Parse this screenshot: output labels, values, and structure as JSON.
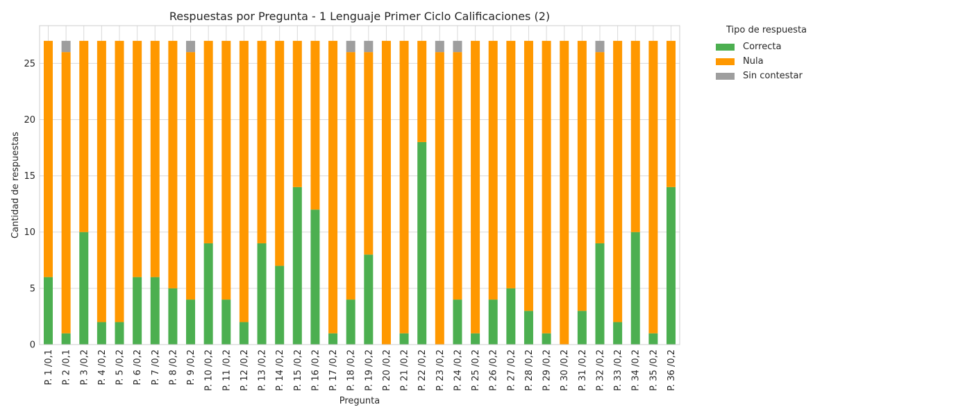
{
  "chart_data": {
    "type": "bar",
    "stacked": true,
    "title": "Respuestas por Pregunta - 1 Lenguaje  Primer Ciclo Calificaciones (2)",
    "xlabel": "Pregunta",
    "ylabel": "Cantidad de respuestas",
    "ylim": [
      0,
      28.35
    ],
    "yticks": [
      0,
      5,
      10,
      15,
      20,
      25
    ],
    "grid": true,
    "legend_title": "Tipo de respuesta",
    "legend_position": "outside-right",
    "categories": [
      "P. 1 /0,1",
      "P. 2 /0,1",
      "P. 3 /0,2",
      "P. 4 /0,2",
      "P. 5 /0,2",
      "P. 6 /0,2",
      "P. 7 /0,2",
      "P. 8 /0,2",
      "P. 9 /0,2",
      "P. 10 /0,2",
      "P. 11 /0,2",
      "P. 12 /0,2",
      "P. 13 /0,2",
      "P. 14 /0,2",
      "P. 15 /0,2",
      "P. 16 /0,2",
      "P. 17 /0,2",
      "P. 18 /0,2",
      "P. 19 /0,2",
      "P. 20 /0,2",
      "P. 21 /0,2",
      "P. 22 /0,2",
      "P. 23 /0,2",
      "P. 24 /0,2",
      "P. 25 /0,2",
      "P. 26 /0,2",
      "P. 27 /0,2",
      "P. 28 /0,2",
      "P. 29 /0,2",
      "P. 30 /0,2",
      "P. 31 /0,2",
      "P. 32 /0,2",
      "P. 33 /0,2",
      "P. 34 /0,2",
      "P. 35 /0,2",
      "P. 36 /0,2"
    ],
    "series": [
      {
        "name": "Correcta",
        "color": "#4caf50",
        "values": [
          6,
          1,
          10,
          2,
          2,
          6,
          6,
          5,
          4,
          9,
          4,
          2,
          9,
          7,
          14,
          12,
          1,
          4,
          8,
          0,
          1,
          18,
          0,
          4,
          1,
          4,
          5,
          3,
          1,
          0,
          3,
          9,
          2,
          10,
          1,
          14
        ]
      },
      {
        "name": "Nula",
        "color": "#ff9800",
        "values": [
          21,
          25,
          17,
          25,
          25,
          21,
          21,
          22,
          22,
          18,
          23,
          25,
          18,
          20,
          13,
          15,
          26,
          22,
          18,
          27,
          26,
          9,
          26,
          22,
          26,
          23,
          22,
          24,
          26,
          27,
          24,
          17,
          25,
          17,
          26,
          13
        ]
      },
      {
        "name": "Sin contestar",
        "color": "#9e9e9e",
        "values": [
          0,
          1,
          0,
          0,
          0,
          0,
          0,
          0,
          1,
          0,
          0,
          0,
          0,
          0,
          0,
          0,
          0,
          1,
          1,
          0,
          0,
          0,
          1,
          1,
          0,
          0,
          0,
          0,
          0,
          0,
          0,
          1,
          0,
          0,
          0,
          0
        ]
      }
    ]
  }
}
